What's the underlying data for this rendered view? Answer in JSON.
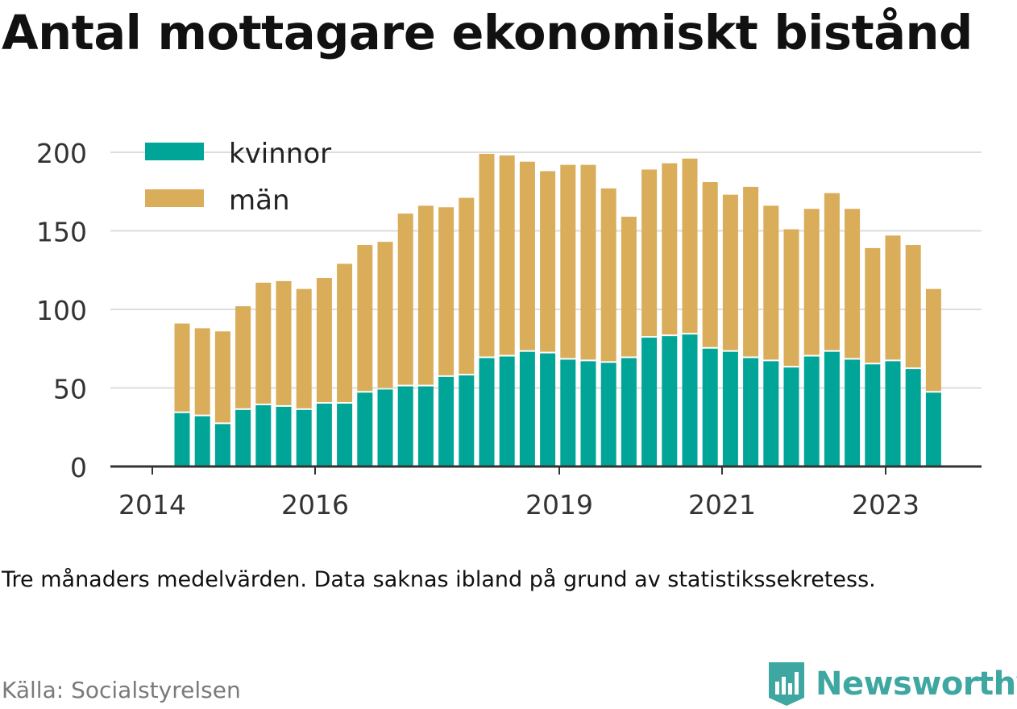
{
  "title": "Antal mottagare ekonomiskt bistånd",
  "note": "Tre månaders medelvärden. Data saknas ibland på grund av statistikssekretess.",
  "source": "Källa: Socialstyrelsen",
  "brand": {
    "name": "Newsworthy",
    "logo_icon": "bar-chart-logo-icon"
  },
  "colors": {
    "kvinnor": "#00a598",
    "man": "#d9ad5a",
    "grid": "#dddddd",
    "axis": "#333333",
    "brand": "#3fa7a1"
  },
  "chart_data": {
    "type": "bar",
    "stacked": true,
    "grid": true,
    "legend_position": "top-left",
    "ylim": [
      0,
      200
    ],
    "yticks": [
      0,
      50,
      100,
      150,
      200
    ],
    "xticks": [
      "2014",
      "2016",
      "2019",
      "2021",
      "2023"
    ],
    "series": [
      {
        "name": "kvinnor",
        "color": "#00a598",
        "values": [
          34,
          32,
          27,
          36,
          39,
          38,
          36,
          40,
          40,
          47,
          49,
          51,
          51,
          57,
          58,
          69,
          70,
          73,
          72,
          68,
          67,
          66,
          69,
          82,
          83,
          84,
          75,
          73,
          69,
          67,
          63,
          70,
          73,
          68,
          65,
          67,
          62,
          47
        ]
      },
      {
        "name": "män",
        "color": "#d9ad5a",
        "values": [
          57,
          56,
          59,
          66,
          78,
          80,
          77,
          80,
          89,
          94,
          94,
          110,
          115,
          108,
          113,
          130,
          128,
          121,
          116,
          124,
          125,
          111,
          90,
          107,
          110,
          112,
          106,
          100,
          109,
          99,
          88,
          94,
          101,
          96,
          74,
          80,
          79,
          66
        ]
      }
    ]
  }
}
